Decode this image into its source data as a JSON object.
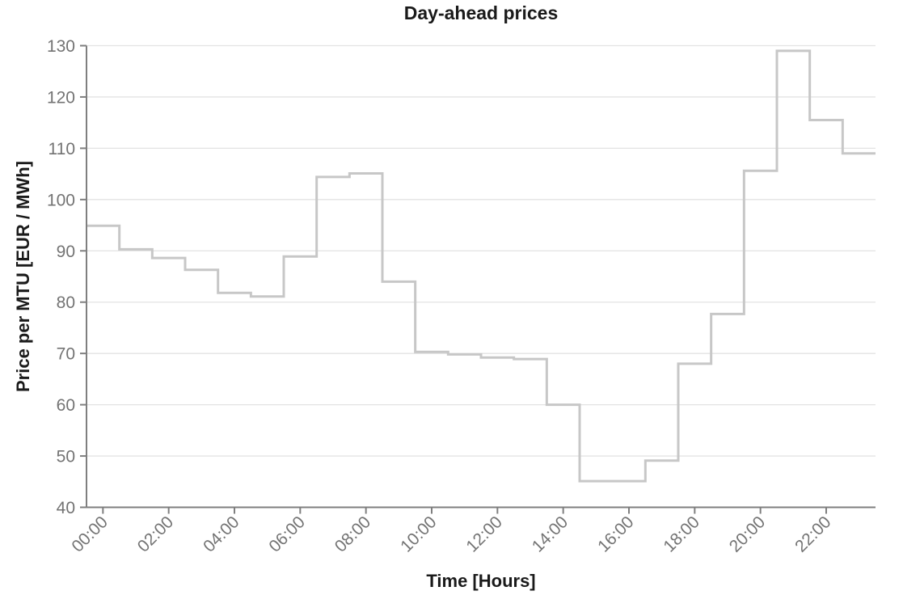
{
  "chart_data": {
    "type": "line",
    "line_style": "step-middle",
    "title": "Day-ahead prices",
    "xlabel": "Time [Hours]",
    "ylabel": "Price per MTU [EUR / MWh]",
    "categories": [
      "00:00",
      "01:00",
      "02:00",
      "03:00",
      "04:00",
      "05:00",
      "06:00",
      "07:00",
      "08:00",
      "09:00",
      "10:00",
      "11:00",
      "12:00",
      "13:00",
      "14:00",
      "15:00",
      "16:00",
      "17:00",
      "18:00",
      "19:00",
      "20:00",
      "21:00",
      "22:00",
      "23:00"
    ],
    "values": [
      94.9,
      90.3,
      88.6,
      86.3,
      81.8,
      81.1,
      88.9,
      104.4,
      105.1,
      84.0,
      70.3,
      69.8,
      69.2,
      68.9,
      60.0,
      45.1,
      45.1,
      49.1,
      68.0,
      77.7,
      105.6,
      129.0,
      115.5,
      109.0
    ],
    "x_tick_labels": [
      "00:00",
      "02:00",
      "04:00",
      "06:00",
      "08:00",
      "10:00",
      "12:00",
      "14:00",
      "16:00",
      "18:00",
      "20:00",
      "22:00"
    ],
    "x_tick_every_hours": 2,
    "y_tick_labels": [
      "40",
      "50",
      "60",
      "70",
      "80",
      "90",
      "100",
      "110",
      "120",
      "130"
    ],
    "ylim": [
      40,
      130
    ],
    "y_tick_step": 10,
    "grid": "horizontal-only",
    "legend": "none",
    "colors": {
      "line": "#c7c7c7",
      "gridline": "#e3e3e3",
      "axis": "#7f7f7f",
      "tick_label": "#737373",
      "text": "#1a1a1a",
      "background": "#ffffff"
    }
  }
}
